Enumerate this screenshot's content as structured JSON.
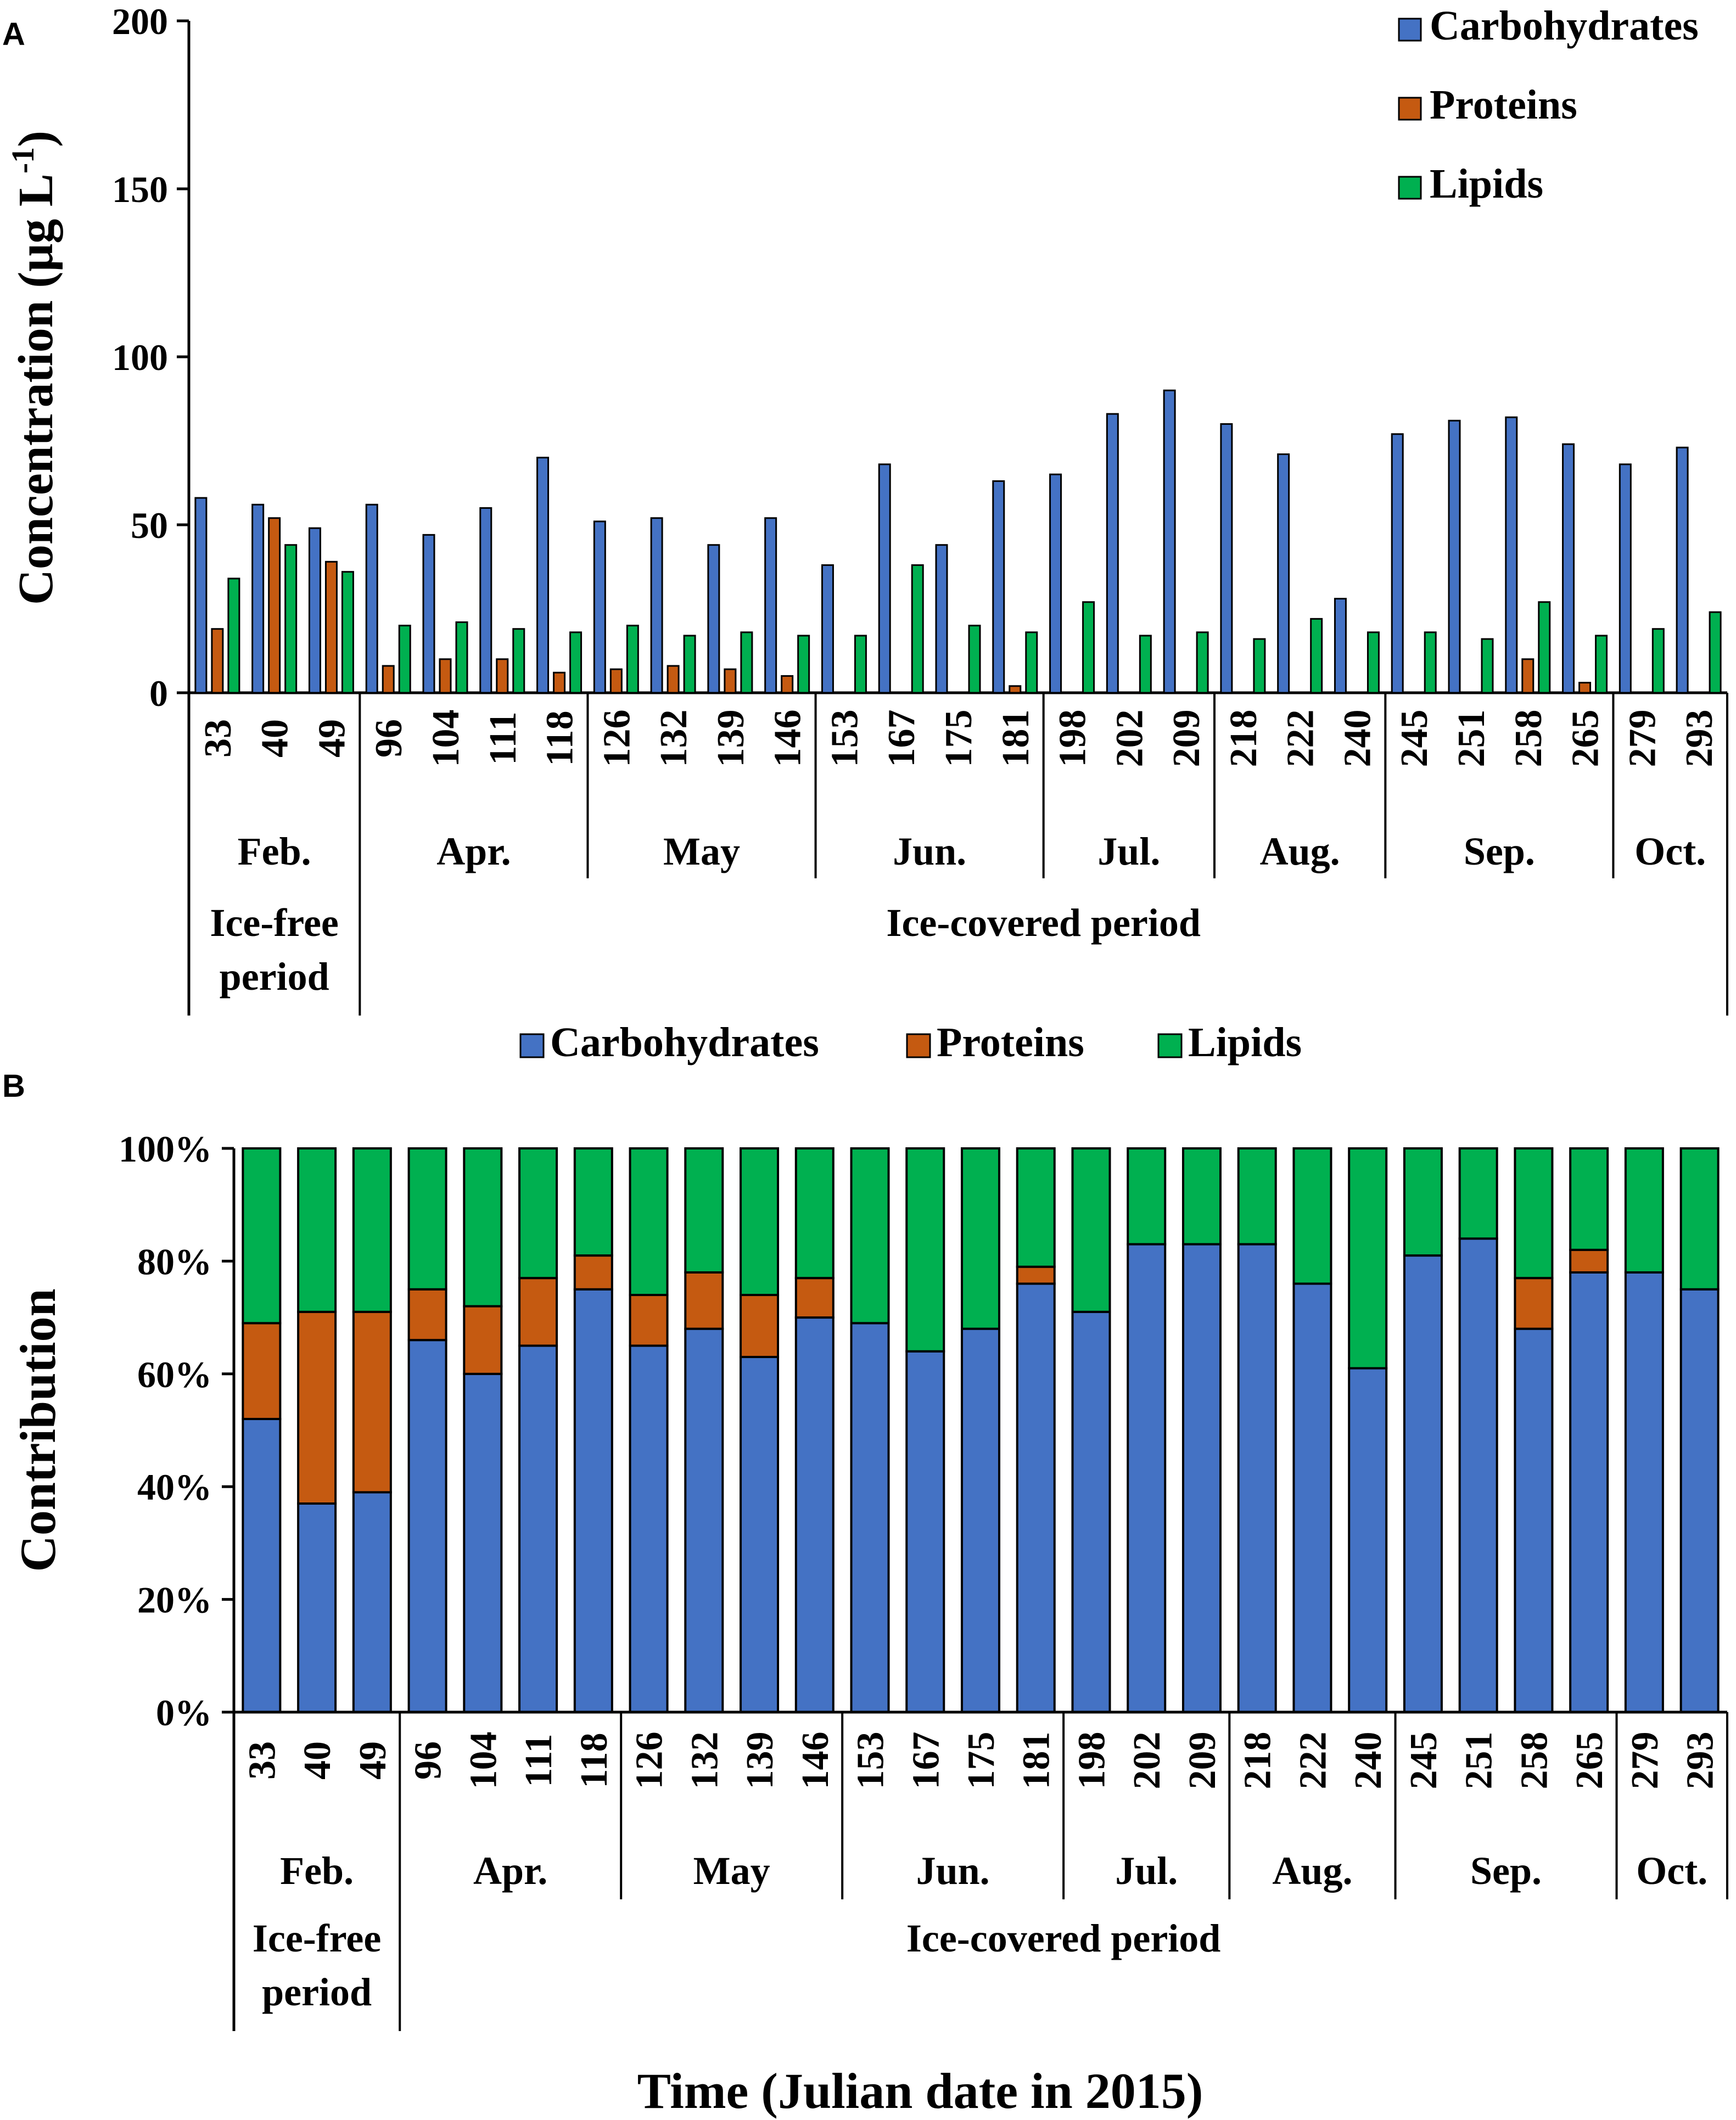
{
  "figure": {
    "panel_a_letter": "A",
    "panel_b_letter": "B",
    "shared_xlabel": "Time (Julian date in 2015)"
  },
  "colors": {
    "carbohydrates": "#4472C4",
    "proteins": "#C55A11",
    "lipids": "#00B050",
    "axis": "#000000"
  },
  "chart_data": [
    {
      "panel": "A",
      "type": "bar",
      "title": "",
      "ylabel": "Concentration (μg L",
      "ylabel_superscript": "-1",
      "ylabel_close": ")",
      "ylim": [
        0,
        200
      ],
      "yticks": [
        0,
        50,
        100,
        150,
        200
      ],
      "ytick_labels": [
        "0",
        "50",
        "100",
        "150",
        "200"
      ],
      "legend": [
        "Carbohydrates",
        "Proteins",
        "Lipids"
      ],
      "legend_position": "top-right",
      "categories": [
        "33",
        "40",
        "49",
        "96",
        "104",
        "111",
        "118",
        "126",
        "132",
        "139",
        "146",
        "153",
        "167",
        "175",
        "181",
        "198",
        "202",
        "209",
        "218",
        "222",
        "240",
        "245",
        "251",
        "258",
        "265",
        "279",
        "293"
      ],
      "series": [
        {
          "name": "Carbohydrates",
          "values": [
            58,
            56,
            49,
            56,
            47,
            55,
            70,
            51,
            52,
            44,
            52,
            38,
            68,
            44,
            63,
            65,
            83,
            90,
            80,
            71,
            28,
            77,
            81,
            82,
            74,
            68,
            73
          ]
        },
        {
          "name": "Proteins",
          "values": [
            19,
            52,
            39,
            8,
            10,
            10,
            6,
            7,
            8,
            7,
            5,
            0,
            0,
            0,
            2,
            0,
            0,
            0,
            0,
            0,
            0,
            0,
            0,
            10,
            3,
            0,
            0
          ]
        },
        {
          "name": "Lipids",
          "values": [
            34,
            44,
            36,
            20,
            21,
            19,
            18,
            20,
            17,
            18,
            17,
            17,
            38,
            20,
            18,
            27,
            17,
            18,
            16,
            22,
            18,
            18,
            16,
            27,
            17,
            19,
            24
          ]
        }
      ],
      "months": [
        {
          "label": "Feb.",
          "count": 3
        },
        {
          "label": "Apr.",
          "count": 4
        },
        {
          "label": "May",
          "count": 4
        },
        {
          "label": "Jun.",
          "count": 4
        },
        {
          "label": "Jul.",
          "count": 3
        },
        {
          "label": "Aug.",
          "count": 3
        },
        {
          "label": "Sep.",
          "count": 4
        },
        {
          "label": "Oct.",
          "count": 2
        }
      ],
      "periods": [
        {
          "label": "Ice-free period",
          "lines": [
            "Ice-free",
            "period"
          ],
          "count": 3
        },
        {
          "label": "Ice-covered period",
          "lines": [
            "Ice-covered period"
          ],
          "count": 24
        }
      ]
    },
    {
      "panel": "B",
      "type": "bar",
      "stacked": true,
      "title": "",
      "ylabel": "Contribution",
      "ylim": [
        0,
        100
      ],
      "yticks": [
        0,
        20,
        40,
        60,
        80,
        100
      ],
      "ytick_labels": [
        "0%",
        "20%",
        "40%",
        "60%",
        "80%",
        "100%"
      ],
      "legend": [
        "Carbohydrates",
        "Proteins",
        "Lipids"
      ],
      "legend_position": "top",
      "categories": [
        "33",
        "40",
        "49",
        "96",
        "104",
        "111",
        "118",
        "126",
        "132",
        "139",
        "146",
        "153",
        "167",
        "175",
        "181",
        "198",
        "202",
        "209",
        "218",
        "222",
        "240",
        "245",
        "251",
        "258",
        "265",
        "279",
        "293"
      ],
      "series": [
        {
          "name": "Carbohydrates",
          "values": [
            52,
            37,
            39,
            66,
            60,
            65,
            75,
            65,
            68,
            63,
            70,
            69,
            64,
            68,
            76,
            71,
            83,
            83,
            83,
            76,
            61,
            81,
            84,
            68,
            78,
            78,
            75
          ]
        },
        {
          "name": "Proteins",
          "values": [
            17,
            34,
            32,
            9,
            12,
            12,
            6,
            9,
            10,
            11,
            7,
            0,
            0,
            0,
            3,
            0,
            0,
            0,
            0,
            0,
            0,
            0,
            0,
            9,
            4,
            0,
            0
          ]
        },
        {
          "name": "Lipids",
          "values": [
            31,
            29,
            29,
            25,
            28,
            23,
            19,
            26,
            22,
            26,
            23,
            31,
            36,
            32,
            21,
            29,
            17,
            17,
            17,
            24,
            39,
            19,
            16,
            23,
            18,
            22,
            25
          ]
        }
      ],
      "months": [
        {
          "label": "Feb.",
          "count": 3
        },
        {
          "label": "Apr.",
          "count": 4
        },
        {
          "label": "May",
          "count": 4
        },
        {
          "label": "Jun.",
          "count": 4
        },
        {
          "label": "Jul.",
          "count": 3
        },
        {
          "label": "Aug.",
          "count": 3
        },
        {
          "label": "Sep.",
          "count": 4
        },
        {
          "label": "Oct.",
          "count": 2
        }
      ],
      "periods": [
        {
          "label": "Ice-free period",
          "lines": [
            "Ice-free",
            "period"
          ],
          "count": 3
        },
        {
          "label": "Ice-covered period",
          "lines": [
            "Ice-covered period"
          ],
          "count": 24
        }
      ]
    }
  ]
}
